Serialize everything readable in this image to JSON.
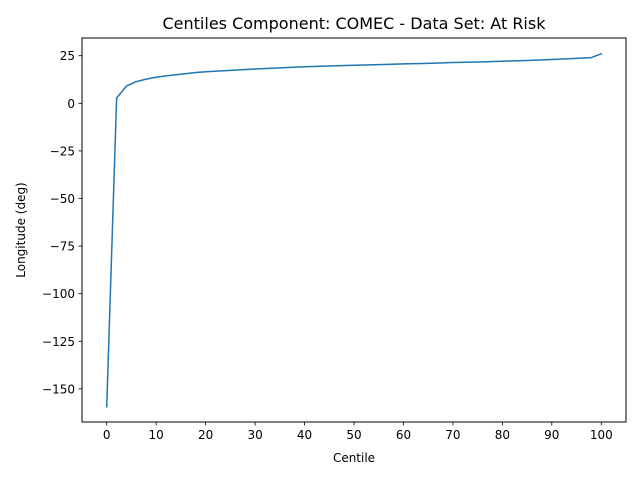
{
  "chart_data": {
    "type": "line",
    "title": "Centiles Component: COMEC - Data Set: At Risk",
    "xlabel": "Centile",
    "ylabel": "Longitude (deg)",
    "xlim": [
      -5,
      105
    ],
    "ylim": [
      -167.4,
      34.3
    ],
    "xticks": [
      0,
      10,
      20,
      30,
      40,
      50,
      60,
      70,
      80,
      90,
      100
    ],
    "yticks": [
      25,
      0,
      -25,
      -50,
      -75,
      -100,
      -125,
      -150
    ],
    "ytick_labels": [
      "25",
      "0",
      "−25",
      "−50",
      "−75",
      "−100",
      "−125",
      "−150"
    ],
    "grid": false,
    "series": [
      {
        "color": "#1f77b4",
        "x": [
          0,
          2,
          4,
          6,
          8,
          10,
          12,
          14,
          16,
          18,
          20,
          25,
          30,
          35,
          40,
          45,
          50,
          55,
          60,
          65,
          70,
          75,
          80,
          85,
          90,
          95,
          98,
          100
        ],
        "y": [
          -159.4,
          2.8,
          9.1,
          11.4,
          12.7,
          13.7,
          14.4,
          15.0,
          15.6,
          16.2,
          16.6,
          17.3,
          18.0,
          18.6,
          19.2,
          19.6,
          20.0,
          20.3,
          20.7,
          21.0,
          21.4,
          21.7,
          22.1,
          22.5,
          23.0,
          23.6,
          24.0,
          26.0
        ]
      }
    ]
  }
}
